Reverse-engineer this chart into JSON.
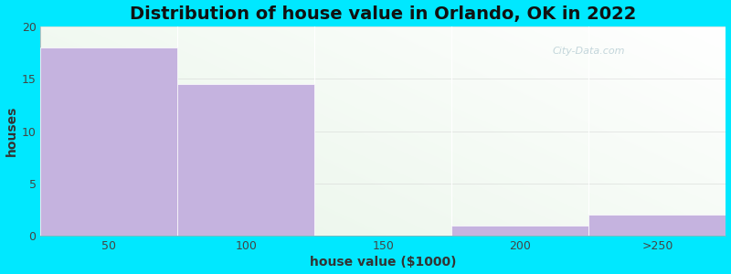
{
  "title": "Distribution of house value in Orlando, OK in 2022",
  "xlabel": "house value ($1000)",
  "ylabel": "houses",
  "bin_edges": [
    0,
    1,
    2,
    3,
    4,
    5
  ],
  "tick_positions": [
    0.5,
    1.5,
    2.5,
    3.5,
    4.5
  ],
  "tick_labels": [
    "50",
    "100",
    "150",
    "200",
    ">250"
  ],
  "bar_values": [
    18,
    14.5,
    0,
    1,
    2
  ],
  "bar_color": "#c5b3df",
  "bar_edge_color": "#c5b3df",
  "ylim": [
    0,
    20
  ],
  "yticks": [
    0,
    5,
    10,
    15,
    20
  ],
  "bg_outer": "#00e8ff",
  "bg_top_left": "#f0f8f0",
  "bg_bottom_right": "#f9fdfb",
  "title_fontsize": 14,
  "axis_label_fontsize": 10,
  "watermark": "City-Data.com"
}
